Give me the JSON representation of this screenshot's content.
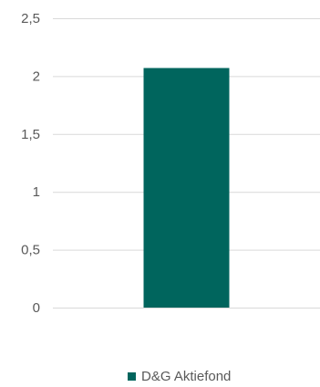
{
  "chart_data": {
    "type": "bar",
    "categories": [
      ""
    ],
    "series": [
      {
        "name": "D&G Aktiefond",
        "values": [
          2.07
        ],
        "color": "#00655d"
      }
    ],
    "ylim": [
      0,
      2.5
    ],
    "yticks": [
      "0",
      "0,5",
      "1",
      "1,5",
      "2",
      "2,5"
    ],
    "ytick_values": [
      0,
      0.5,
      1,
      1.5,
      2,
      2.5
    ],
    "grid": true,
    "legend_position": "bottom"
  }
}
